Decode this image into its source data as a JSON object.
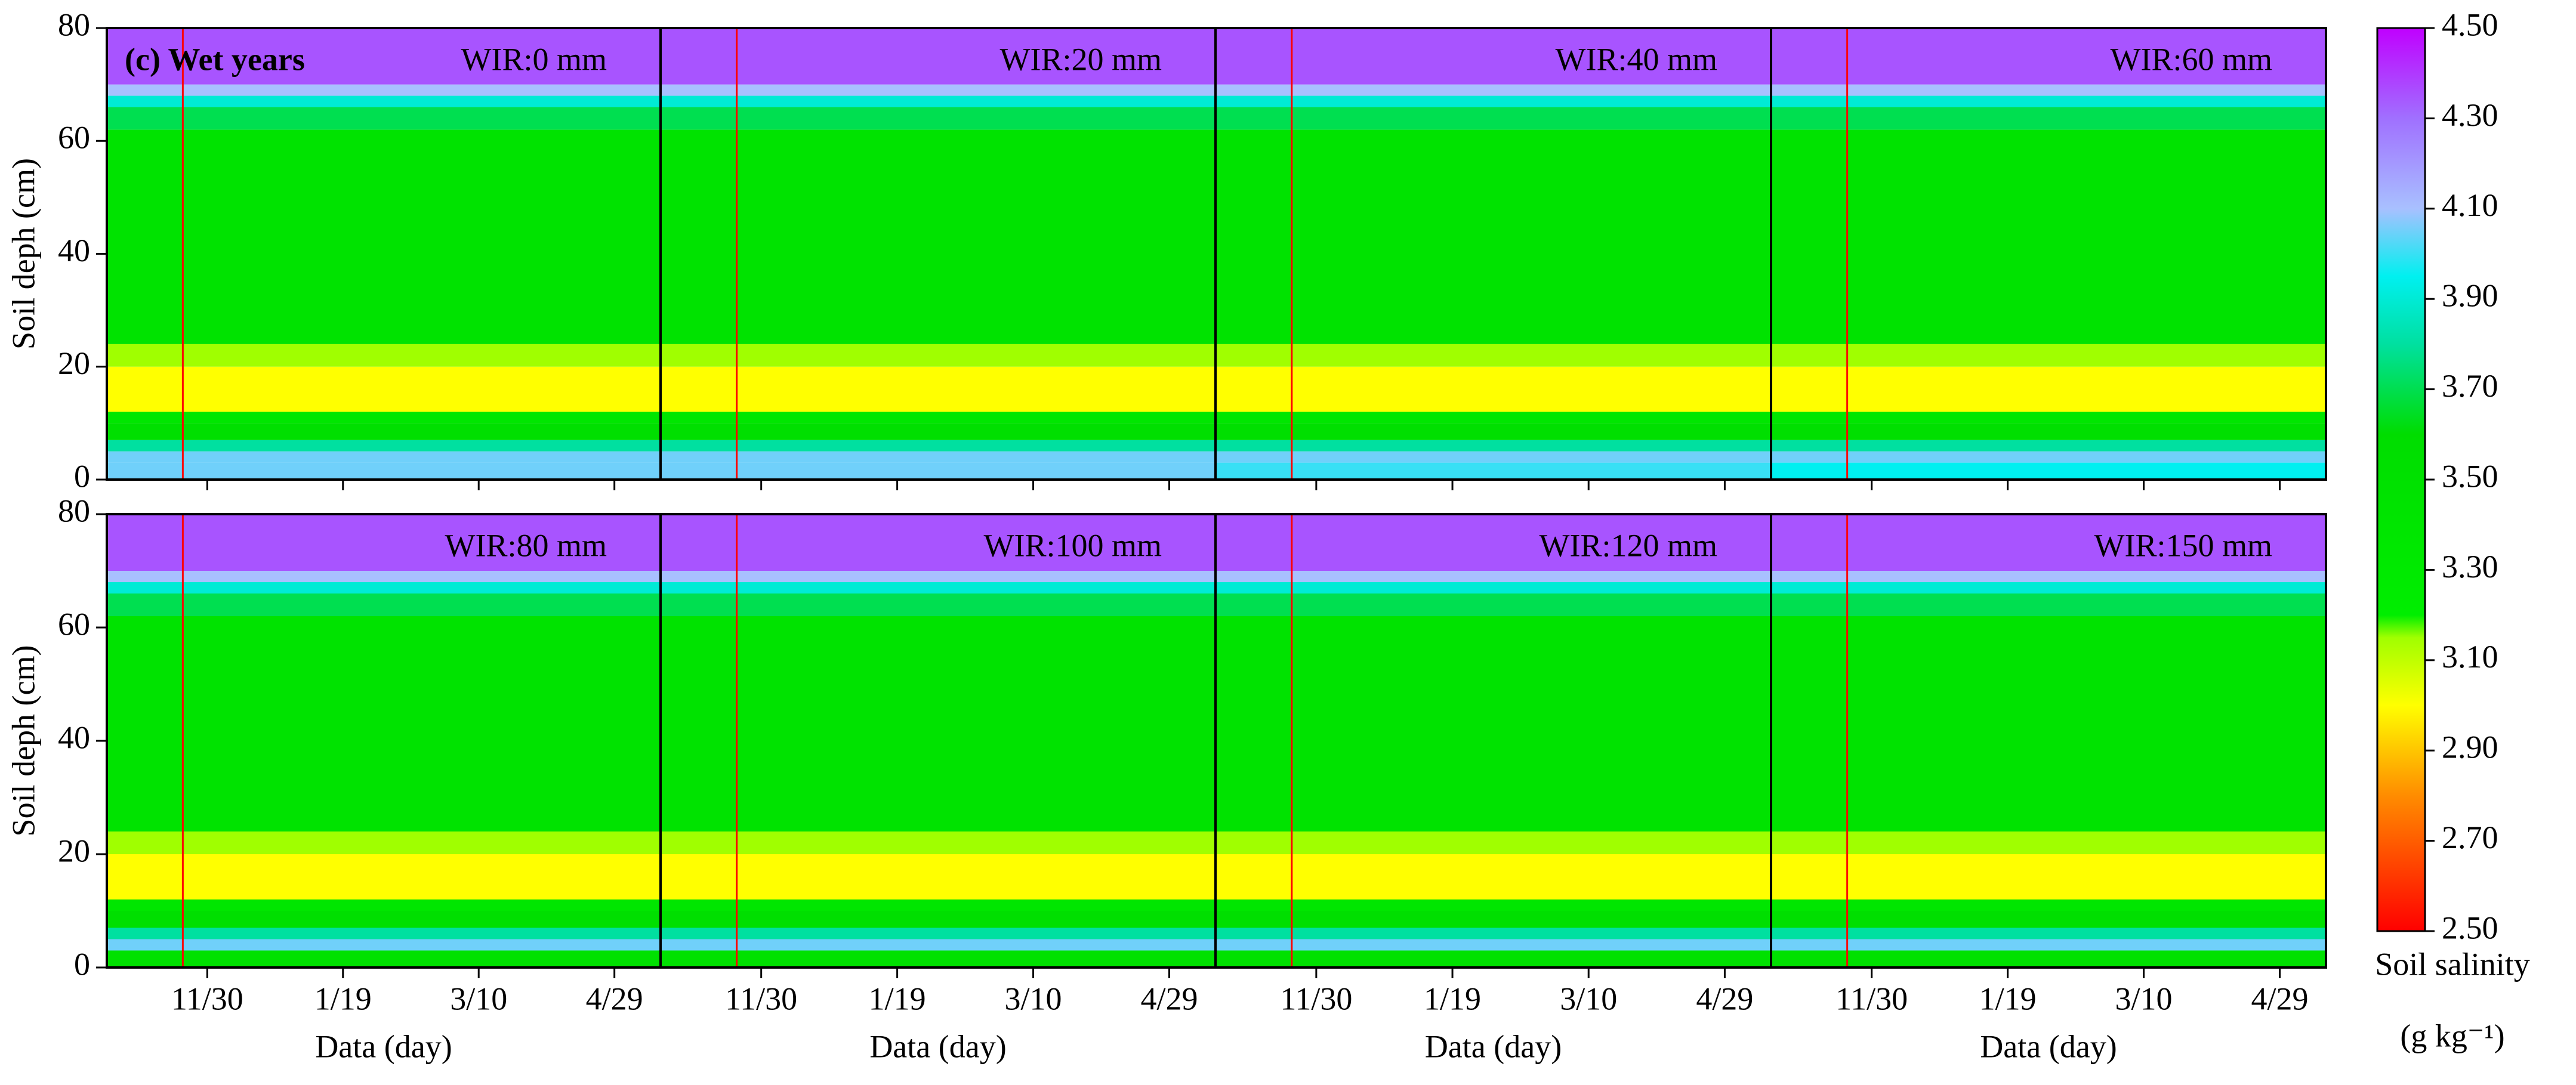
{
  "chart_data": {
    "type": "heatmap",
    "annotation": "(c) Wet years",
    "ylabel": "Soil deph (cm)",
    "xlabel": "Data (day)",
    "xlim": [
      0,
      204
    ],
    "xticks": [
      {
        "value": 37,
        "label": "11/30"
      },
      {
        "value": 87,
        "label": "1/19"
      },
      {
        "value": 137,
        "label": "3/10"
      },
      {
        "value": 187,
        "label": "4/29"
      }
    ],
    "ylim": [
      0,
      80
    ],
    "yticks": [
      0,
      20,
      40,
      60,
      80
    ],
    "reference_line_x": 28,
    "reference_line_color": "#ff0000",
    "depth_bins": [
      0,
      3,
      5,
      7,
      10,
      12,
      20,
      24,
      62,
      66,
      68,
      70,
      80
    ],
    "panels": [
      {
        "label": "WIR:0 mm",
        "values": [
          4.05,
          4.05,
          3.8,
          3.55,
          3.4,
          3.0,
          3.15,
          3.45,
          3.7,
          3.9,
          4.1,
          4.35
        ]
      },
      {
        "label": "WIR:20 mm",
        "values": [
          4.05,
          4.05,
          3.8,
          3.55,
          3.4,
          3.0,
          3.15,
          3.45,
          3.7,
          3.9,
          4.1,
          4.35
        ]
      },
      {
        "label": "WIR:40 mm",
        "values": [
          4.0,
          4.05,
          3.8,
          3.55,
          3.4,
          3.0,
          3.15,
          3.45,
          3.7,
          3.9,
          4.1,
          4.35
        ]
      },
      {
        "label": "WIR:60 mm",
        "values": [
          3.95,
          4.05,
          3.8,
          3.55,
          3.4,
          3.0,
          3.15,
          3.45,
          3.7,
          3.9,
          4.1,
          4.35
        ]
      },
      {
        "label": "WIR:80 mm",
        "values": [
          3.5,
          4.05,
          3.8,
          3.55,
          3.4,
          3.0,
          3.15,
          3.45,
          3.7,
          3.9,
          4.1,
          4.35
        ]
      },
      {
        "label": "WIR:100 mm",
        "values": [
          3.5,
          4.05,
          3.8,
          3.55,
          3.4,
          3.0,
          3.15,
          3.45,
          3.7,
          3.9,
          4.1,
          4.35
        ]
      },
      {
        "label": "WIR:120 mm",
        "values": [
          3.5,
          4.05,
          3.8,
          3.55,
          3.4,
          3.0,
          3.15,
          3.45,
          3.7,
          3.9,
          4.1,
          4.35
        ]
      },
      {
        "label": "WIR:150 mm",
        "values": [
          3.5,
          4.05,
          3.8,
          3.55,
          3.4,
          3.0,
          3.15,
          3.45,
          3.7,
          3.9,
          4.1,
          4.35
        ]
      }
    ],
    "colorbar": {
      "label": "Soil salinity",
      "unit": "(g kg⁻¹)",
      "lim": [
        2.5,
        4.5
      ],
      "ticks": [
        {
          "value": 2.5,
          "label": "2.50"
        },
        {
          "value": 2.7,
          "label": "2.70"
        },
        {
          "value": 2.9,
          "label": "2.90"
        },
        {
          "value": 3.1,
          "label": "3.10"
        },
        {
          "value": 3.3,
          "label": "3.30"
        },
        {
          "value": 3.5,
          "label": "3.50"
        },
        {
          "value": 3.7,
          "label": "3.70"
        },
        {
          "value": 3.9,
          "label": "3.90"
        },
        {
          "value": 4.1,
          "label": "4.10"
        },
        {
          "value": 4.3,
          "label": "4.30"
        },
        {
          "value": 4.5,
          "label": "4.50"
        }
      ],
      "colors": [
        {
          "value": 2.5,
          "color": "#ff0000"
        },
        {
          "value": 2.8,
          "color": "#ff8c00"
        },
        {
          "value": 3.0,
          "color": "#ffff00"
        },
        {
          "value": 3.15,
          "color": "#a0ff00"
        },
        {
          "value": 3.2,
          "color": "#00ee00"
        },
        {
          "value": 3.6,
          "color": "#00dd00"
        },
        {
          "value": 3.8,
          "color": "#00e0a0"
        },
        {
          "value": 3.95,
          "color": "#00f0f0"
        },
        {
          "value": 4.1,
          "color": "#a8c0ff"
        },
        {
          "value": 4.3,
          "color": "#a070ff"
        },
        {
          "value": 4.5,
          "color": "#c000ff"
        }
      ]
    }
  }
}
